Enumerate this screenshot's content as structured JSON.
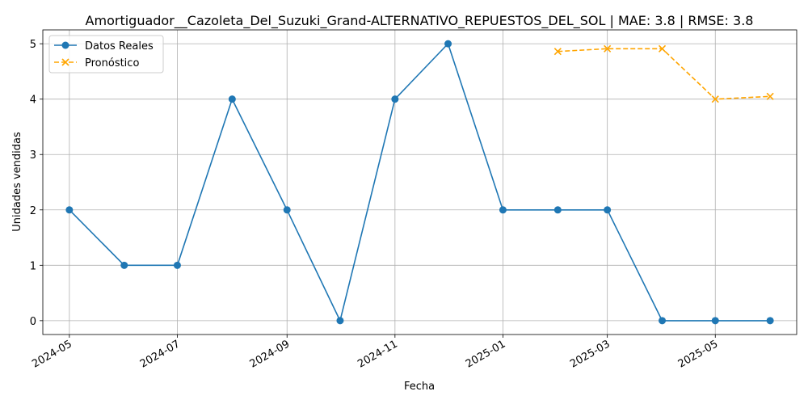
{
  "chart_data": {
    "type": "line",
    "title": "Amortiguador__Cazoleta_Del_Suzuki_Grand-ALTERNATIVO_REPUESTOS_DEL_SOL | MAE: 3.8 | RMSE: 3.8",
    "xlabel": "Fecha",
    "ylabel": "Unidades vendidas",
    "ylim": [
      -0.25,
      5.25
    ],
    "xlim": [
      "2024-04-16",
      "2025-06-16"
    ],
    "x_ticks": [
      "2024-05",
      "2024-07",
      "2024-09",
      "2024-11",
      "2025-01",
      "2025-03",
      "2025-05"
    ],
    "y_ticks": [
      0,
      1,
      2,
      3,
      4,
      5
    ],
    "grid": true,
    "legend_position": "top-left",
    "series": [
      {
        "name": "Datos Reales",
        "color": "#1f77b4",
        "marker": "circle",
        "line_style": "solid",
        "x": [
          "2024-05-01",
          "2024-06-01",
          "2024-07-01",
          "2024-08-01",
          "2024-09-01",
          "2024-10-01",
          "2024-11-01",
          "2024-12-01",
          "2025-01-01",
          "2025-02-01",
          "2025-03-01",
          "2025-04-01",
          "2025-05-01",
          "2025-06-01"
        ],
        "values": [
          2,
          1,
          1,
          4,
          2,
          0,
          4,
          5,
          2,
          2,
          2,
          0,
          0,
          0
        ]
      },
      {
        "name": "Pronóstico",
        "color": "#ffa500",
        "marker": "x",
        "line_style": "dashed",
        "x": [
          "2025-02-01",
          "2025-03-01",
          "2025-04-01",
          "2025-05-01",
          "2025-06-01"
        ],
        "values": [
          4.86,
          4.91,
          4.91,
          4.0,
          4.05
        ]
      }
    ]
  }
}
